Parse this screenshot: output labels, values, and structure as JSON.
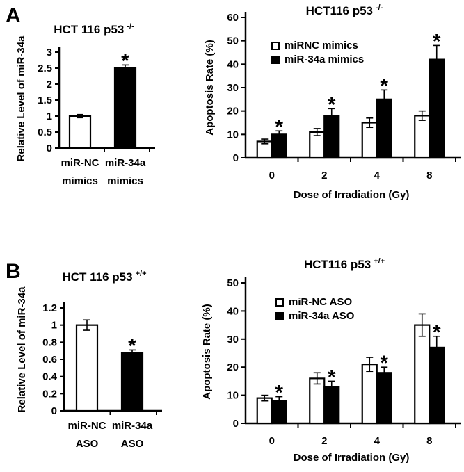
{
  "figure": {
    "panels": [
      {
        "label": "A"
      },
      {
        "label": "B"
      }
    ],
    "background": "#ffffff"
  },
  "colors": {
    "axis": "#000000",
    "text": "#000000",
    "open_bar_fill": "#ffffff",
    "filled_bar_fill": "#000000"
  },
  "chart_data": [
    {
      "id": "panel-a-mir34a-level",
      "type": "bar",
      "title": "HCT 116 p53",
      "title_sup": "-/-",
      "ylabel": "Relative Level of miR-34a",
      "xlabel": "",
      "ylim": [
        0,
        3
      ],
      "yticks": [
        0,
        0.5,
        1,
        1.5,
        2,
        2.5,
        3
      ],
      "grid": false,
      "categories": [
        [
          "miR-NC",
          "mimics"
        ],
        [
          "miR-34a",
          "mimics"
        ]
      ],
      "values": [
        1.0,
        2.5
      ],
      "errors": [
        0.05,
        0.1
      ],
      "fills": [
        "white",
        "black"
      ],
      "significant": [
        false,
        true
      ],
      "sig_marker": "*"
    },
    {
      "id": "panel-a-apoptosis-rate",
      "type": "bar",
      "grouped": true,
      "title": "HCT116 p53",
      "title_sup": "-/-",
      "ylabel": "Apoptosis Rate (%)",
      "xlabel": "Dose of Irradiation (Gy)",
      "ylim": [
        0,
        60
      ],
      "yticks": [
        0,
        10,
        20,
        30,
        40,
        50,
        60
      ],
      "grid": false,
      "legend_position": "inside-top-left",
      "categories": [
        "0",
        "2",
        "4",
        "8"
      ],
      "series": [
        {
          "name": "miRNC mimics",
          "fill": "white",
          "values": [
            7,
            11,
            15,
            18
          ],
          "errors": [
            1,
            1.5,
            2,
            2
          ],
          "significant": [
            false,
            false,
            false,
            false
          ]
        },
        {
          "name": "miR-34a mimics",
          "fill": "black",
          "values": [
            10,
            18,
            25,
            42
          ],
          "errors": [
            1.5,
            3,
            4,
            6
          ],
          "significant": [
            true,
            true,
            true,
            true
          ]
        }
      ],
      "sig_marker": "*"
    },
    {
      "id": "panel-b-mir34a-level",
      "type": "bar",
      "title": "HCT 116 p53",
      "title_sup": "+/+",
      "ylabel": "Relative Level of miR-34a",
      "xlabel": "",
      "ylim": [
        0,
        1.2
      ],
      "yticks": [
        0,
        0.2,
        0.4,
        0.6,
        0.8,
        1,
        1.2
      ],
      "grid": false,
      "categories": [
        [
          "miR-NC",
          "ASO"
        ],
        [
          "miR-34a",
          "ASO"
        ]
      ],
      "values": [
        1.0,
        0.68
      ],
      "errors": [
        0.06,
        0.03
      ],
      "fills": [
        "white",
        "black"
      ],
      "significant": [
        false,
        true
      ],
      "sig_marker": "*"
    },
    {
      "id": "panel-b-apoptosis-rate",
      "type": "bar",
      "grouped": true,
      "title": "HCT116 p53",
      "title_sup": "+/+",
      "ylabel": "Apoptosis Rate (%)",
      "xlabel": "Dose of Irradiation (Gy)",
      "ylim": [
        0,
        50
      ],
      "yticks": [
        0,
        10,
        20,
        30,
        40,
        50
      ],
      "grid": false,
      "legend_position": "inside-top-left",
      "categories": [
        "0",
        "2",
        "4",
        "8"
      ],
      "series": [
        {
          "name": "miR-NC ASO",
          "fill": "white",
          "values": [
            9,
            16,
            21,
            35
          ],
          "errors": [
            1,
            2,
            2.5,
            4
          ],
          "significant": [
            false,
            false,
            false,
            false
          ]
        },
        {
          "name": "miR-34a ASO",
          "fill": "black",
          "values": [
            8,
            13,
            18,
            27
          ],
          "errors": [
            1.5,
            2,
            2,
            4
          ],
          "significant": [
            true,
            true,
            true,
            true
          ]
        }
      ],
      "sig_marker": "*"
    }
  ]
}
